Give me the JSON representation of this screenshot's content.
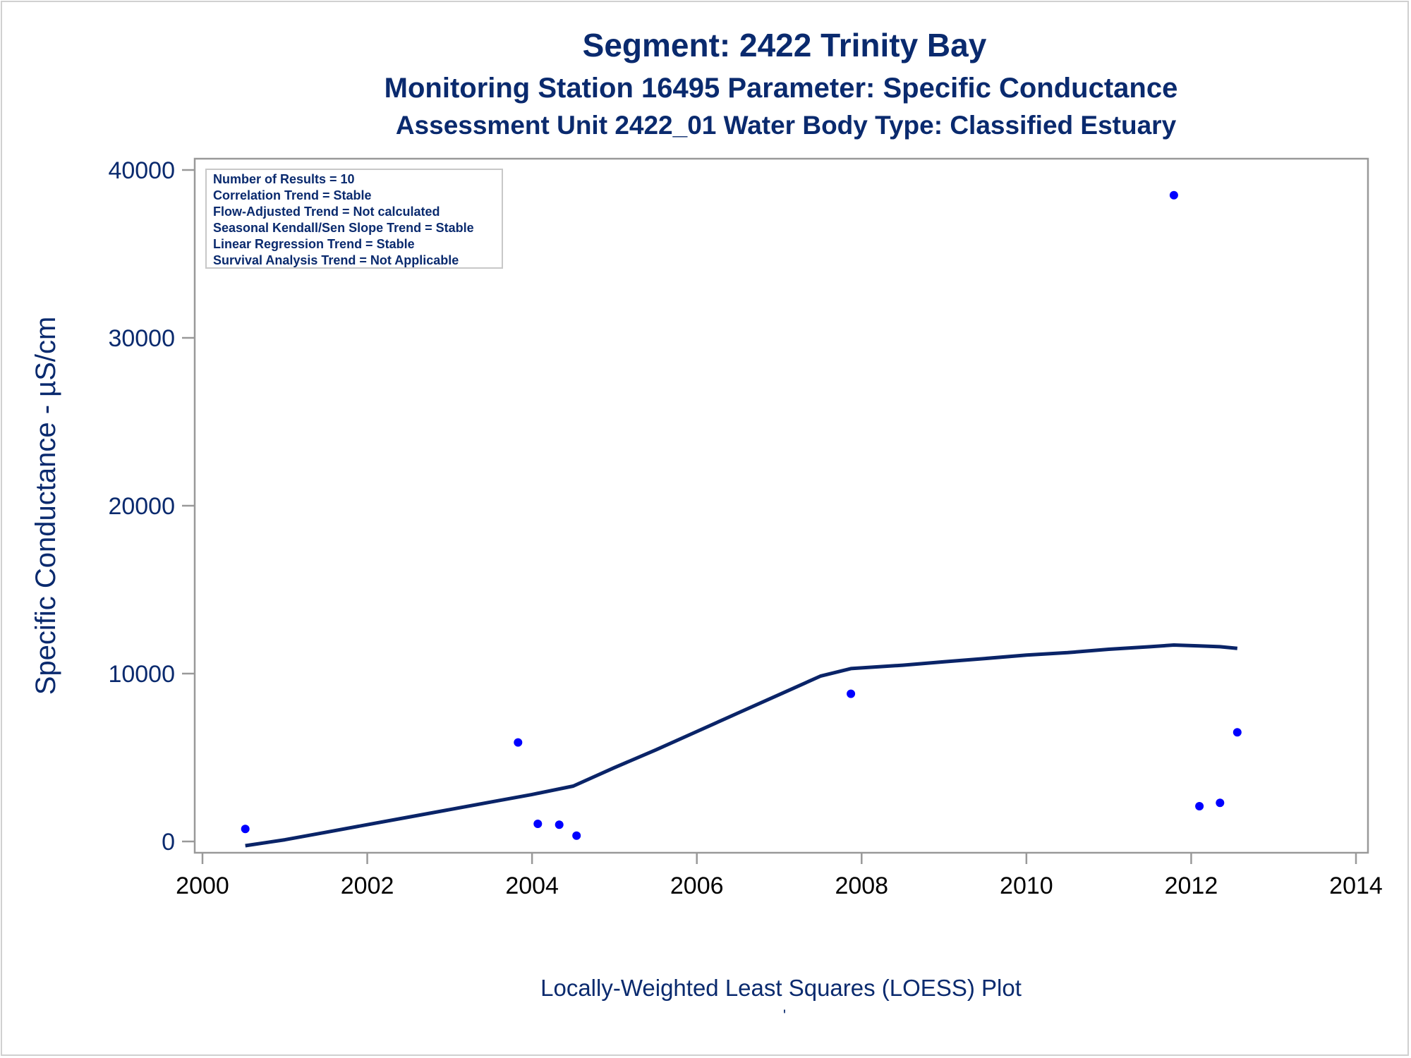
{
  "colors": {
    "text": "#0a2a6e",
    "xtick": "#000000",
    "points": "#0000ff",
    "line": "#0a2468",
    "axis": "#999999"
  },
  "chart_data": {
    "type": "scatter",
    "title": "Segment: 2422  Trinity Bay",
    "subtitle1": "Monitoring Station 16495 Parameter: Specific Conductance",
    "subtitle2": "Assessment Unit 2422_01   Water Body Type: Classified Estuary",
    "xlabel": "Locally-Weighted Least Squares (LOESS) Plot",
    "footnote": "'",
    "ylabel": "Specific Conductance -  µS/cm",
    "xlim": [
      2000,
      2014
    ],
    "ylim": [
      -700,
      40700
    ],
    "xticks": [
      2000,
      2002,
      2004,
      2006,
      2008,
      2010,
      2012,
      2014
    ],
    "yticks": [
      0,
      10000,
      20000,
      30000,
      40000
    ],
    "grid": false,
    "legend_position": "top-left",
    "stats_box": [
      "Number of Results = 10",
      "Correlation Trend = Stable",
      "Flow-Adjusted Trend = Not calculated",
      "Seasonal Kendall/Sen Slope Trend = Stable",
      "Linear Regression Trend = Stable",
      "Survival Analysis Trend = Not Applicable"
    ],
    "series": [
      {
        "type": "scatter",
        "x": [
          2000.52,
          2003.83,
          2004.07,
          2004.33,
          2004.54,
          2007.87,
          2011.79,
          2012.1,
          2012.35,
          2012.56
        ],
        "y": [
          750,
          5900,
          1050,
          1000,
          350,
          8800,
          38500,
          2100,
          2300,
          6500
        ]
      },
      {
        "type": "line",
        "x": [
          2000.52,
          2001.0,
          2001.5,
          2002.0,
          2002.5,
          2003.0,
          2003.5,
          2004.0,
          2004.5,
          2005.0,
          2005.5,
          2006.0,
          2006.5,
          2007.0,
          2007.5,
          2007.87,
          2008.5,
          2009.0,
          2009.5,
          2010.0,
          2010.5,
          2011.0,
          2011.5,
          2011.79,
          2012.1,
          2012.35,
          2012.56
        ],
        "y": [
          -250,
          100,
          550,
          1000,
          1450,
          1900,
          2350,
          2800,
          3300,
          4400,
          5450,
          6550,
          7650,
          8750,
          9850,
          10300,
          10500,
          10700,
          10900,
          11100,
          11250,
          11450,
          11600,
          11700,
          11650,
          11600,
          11500
        ]
      }
    ]
  }
}
